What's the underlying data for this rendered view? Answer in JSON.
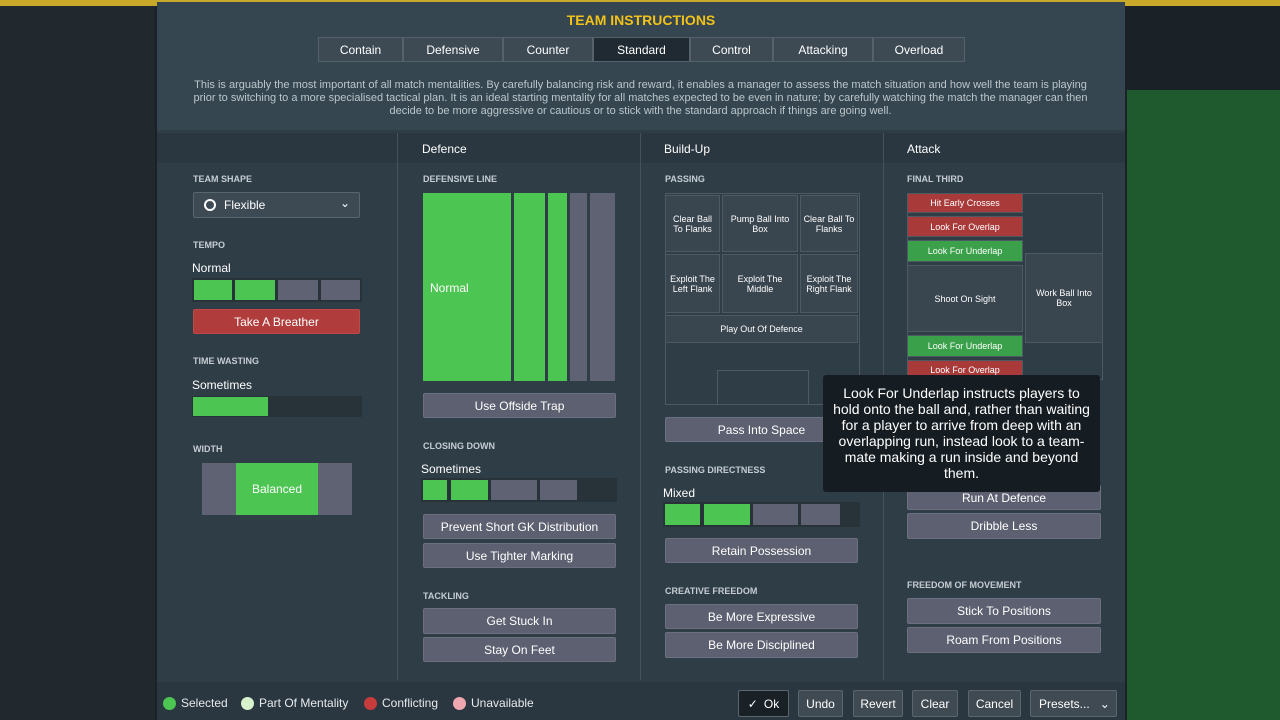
{
  "header": {
    "title": "TEAM INSTRUCTIONS",
    "tabs": [
      "Contain",
      "Defensive",
      "Counter",
      "Standard",
      "Control",
      "Attacking",
      "Overload"
    ],
    "description": "This is arguably the most important of all match mentalities. By carefully balancing risk and reward, it enables a manager to assess the match situation and how well the team is playing prior to switching to a more specialised tactical plan. It is an ideal starting mentality for all matches expected to be even in nature; by carefully watching the match the manager can then decide to be more aggressive or cautious or to stick with the standard approach if things are going well."
  },
  "columns": [
    "Defence",
    "Build-Up",
    "Attack"
  ],
  "general": {
    "team_shape": {
      "label": "TEAM SHAPE",
      "value": "Flexible"
    },
    "tempo": {
      "label": "TEMPO",
      "value": "Normal",
      "button": "Take A Breather"
    },
    "time_wasting": {
      "label": "TIME WASTING",
      "value": "Sometimes"
    },
    "width": {
      "label": "WIDTH",
      "value": "Balanced"
    }
  },
  "defence": {
    "defensive_line": {
      "label": "DEFENSIVE LINE",
      "value": "Normal",
      "button": "Use Offside Trap"
    },
    "closing_down": {
      "label": "CLOSING DOWN",
      "value": "Sometimes",
      "buttons": [
        "Prevent Short GK Distribution",
        "Use Tighter Marking"
      ]
    },
    "tackling": {
      "label": "TACKLING",
      "buttons": [
        "Get Stuck In",
        "Stay On Feet"
      ]
    }
  },
  "build_up": {
    "passing": {
      "label": "PASSING",
      "zones": [
        "Clear Ball To Flanks",
        "Pump Ball Into Box",
        "Clear Ball To Flanks",
        "Exploit The Left Flank",
        "Exploit The Middle",
        "Exploit The Right Flank",
        "Play Out Of Defence"
      ],
      "button": "Pass Into Space"
    },
    "passing_directness": {
      "label": "PASSING DIRECTNESS",
      "value": "Mixed",
      "button": "Retain Possession"
    },
    "creative_freedom": {
      "label": "CREATIVE FREEDOM",
      "buttons": [
        "Be More Expressive",
        "Be More Disciplined"
      ]
    }
  },
  "attack": {
    "final_third": {
      "label": "FINAL THIRD",
      "zones": [
        "Hit Early Crosses",
        "Look For Overlap",
        "Look For Underlap",
        "Shoot On Sight",
        "Work Ball Into Box",
        "Look For Underlap",
        "Look For Overlap"
      ],
      "buttons": [
        "Run At Defence",
        "Dribble Less"
      ]
    },
    "freedom_of_movement": {
      "label": "FREEDOM OF MOVEMENT",
      "buttons": [
        "Stick To Positions",
        "Roam From Positions"
      ]
    }
  },
  "tooltip": "Look For Underlap instructs players to hold onto the ball and, rather than waiting for a player to arrive from deep with an overlapping run, instead look to a team-mate making a run inside and beyond them.",
  "legend": [
    "Selected",
    "Part Of Mentality",
    "Conflicting",
    "Unavailable"
  ],
  "footer_buttons": [
    "Ok",
    "Undo",
    "Revert",
    "Clear",
    "Cancel",
    "Presets..."
  ]
}
